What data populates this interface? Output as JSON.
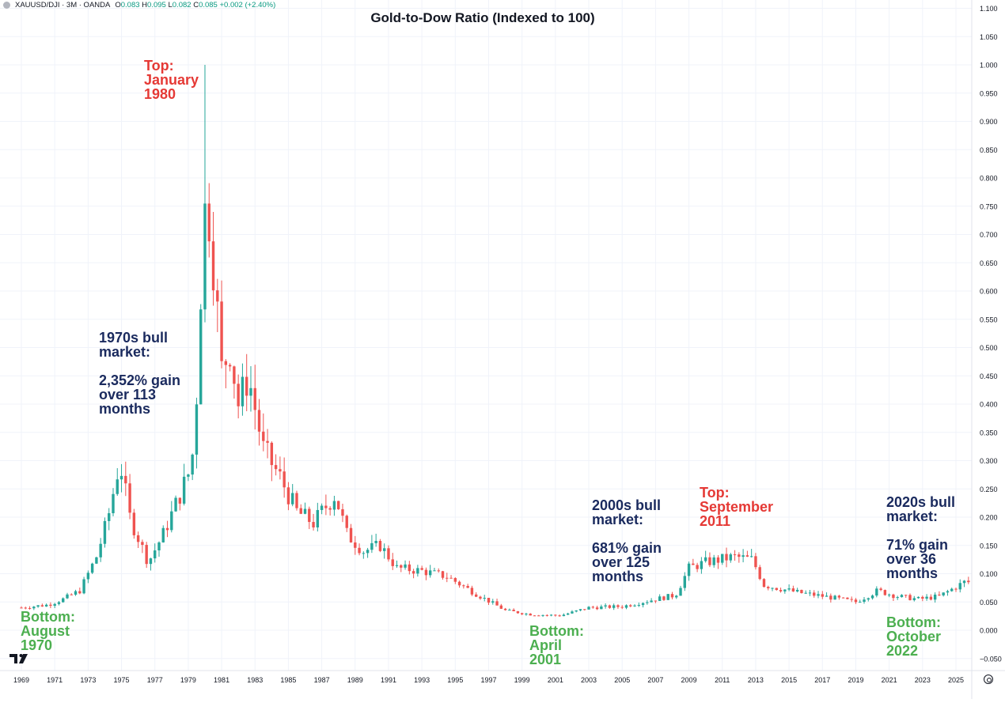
{
  "legend": {
    "symbol": "XAUUSD/DJI · 3M · OANDA",
    "open_label": "O",
    "open": "0.083",
    "high_label": "H",
    "high": "0.095",
    "low_label": "L",
    "low": "0.082",
    "close_label": "C",
    "close": "0.085",
    "change": "+0.002 (+2.40%)"
  },
  "annotations": {
    "top_1980": "Top:\nJanuary\n1980",
    "bull_1970s": "1970s bull\nmarket:\n\n2,352% gain\nover 113\nmonths",
    "bottom_1970": "Bottom:\nAugust\n1970",
    "bottom_2001": "Bottom:\nApril\n2001",
    "bull_2000s": "2000s bull\nmarket:\n\n681% gain\nover 125\nmonths",
    "top_2011": "Top:\nSeptember\n2011",
    "bull_2020s": "2020s bull\nmarket:\n\n71% gain\nover 36\nmonths",
    "bottom_2022": "Bottom:\nOctober\n2022"
  },
  "colors": {
    "up": "#26a69a",
    "down": "#ef5350",
    "grid": "#f0f3fa",
    "axis_text": "#131722"
  },
  "chart_data": {
    "type": "candlestick",
    "title": "Gold-to-Dow Ratio (Indexed to 100)",
    "xlabel": "",
    "ylabel": "",
    "interval": "3M",
    "ylim": [
      -0.06,
      1.11
    ],
    "xlim": [
      1968.6,
      2026.6
    ],
    "grid": true,
    "y_ticks": [
      "1.100",
      "1.050",
      "1.000",
      "0.950",
      "0.900",
      "0.850",
      "0.800",
      "0.750",
      "0.700",
      "0.650",
      "0.600",
      "0.550",
      "0.500",
      "0.450",
      "0.400",
      "0.350",
      "0.300",
      "0.250",
      "0.200",
      "0.150",
      "0.100",
      "0.050",
      "0.000",
      "-0.050"
    ],
    "x_ticks": [
      "1969",
      "1971",
      "1973",
      "1975",
      "1977",
      "1979",
      "1981",
      "1983",
      "1985",
      "1987",
      "1989",
      "1991",
      "1993",
      "1995",
      "1997",
      "1999",
      "2001",
      "2003",
      "2005",
      "2007",
      "2009",
      "2011",
      "2013",
      "2015",
      "2017",
      "2019",
      "2021",
      "2023",
      "2025"
    ],
    "anchors": [
      [
        1969.0,
        0.04
      ],
      [
        1970.6,
        0.045
      ],
      [
        1971.5,
        0.055
      ],
      [
        1972.5,
        0.07
      ],
      [
        1973.5,
        0.13
      ],
      [
        1974.2,
        0.2
      ],
      [
        1974.9,
        0.3
      ],
      [
        1975.5,
        0.2
      ],
      [
        1976.6,
        0.12
      ],
      [
        1977.5,
        0.17
      ],
      [
        1978.5,
        0.24
      ],
      [
        1979.2,
        0.29
      ],
      [
        1979.6,
        0.46
      ],
      [
        1979.8,
        0.65
      ],
      [
        1980.0,
        0.74
      ],
      [
        1980.2,
        0.75
      ],
      [
        1980.6,
        0.62
      ],
      [
        1981.0,
        0.46
      ],
      [
        1981.5,
        0.5
      ],
      [
        1982.0,
        0.4
      ],
      [
        1982.6,
        0.45
      ],
      [
        1983.5,
        0.32
      ],
      [
        1984.5,
        0.27
      ],
      [
        1985.5,
        0.21
      ],
      [
        1986.5,
        0.19
      ],
      [
        1987.8,
        0.24
      ],
      [
        1988.5,
        0.17
      ],
      [
        1989.5,
        0.14
      ],
      [
        1990.5,
        0.15
      ],
      [
        1991.5,
        0.11
      ],
      [
        1993.0,
        0.105
      ],
      [
        1994.5,
        0.095
      ],
      [
        1996.5,
        0.06
      ],
      [
        1998.0,
        0.035
      ],
      [
        1999.5,
        0.028
      ],
      [
        2001.3,
        0.026
      ],
      [
        2003.0,
        0.04
      ],
      [
        2005.0,
        0.042
      ],
      [
        2007.0,
        0.055
      ],
      [
        2008.2,
        0.062
      ],
      [
        2009.0,
        0.11
      ],
      [
        2010.0,
        0.12
      ],
      [
        2011.7,
        0.13
      ],
      [
        2012.8,
        0.125
      ],
      [
        2013.5,
        0.08
      ],
      [
        2015.5,
        0.067
      ],
      [
        2017.5,
        0.058
      ],
      [
        2019.0,
        0.05
      ],
      [
        2020.3,
        0.07
      ],
      [
        2021.5,
        0.06
      ],
      [
        2022.8,
        0.055
      ],
      [
        2024.0,
        0.06
      ],
      [
        2025.5,
        0.085
      ]
    ],
    "highlights": [
      {
        "x": 1980.05,
        "high": 1.0,
        "note": "spike wick"
      }
    ]
  }
}
